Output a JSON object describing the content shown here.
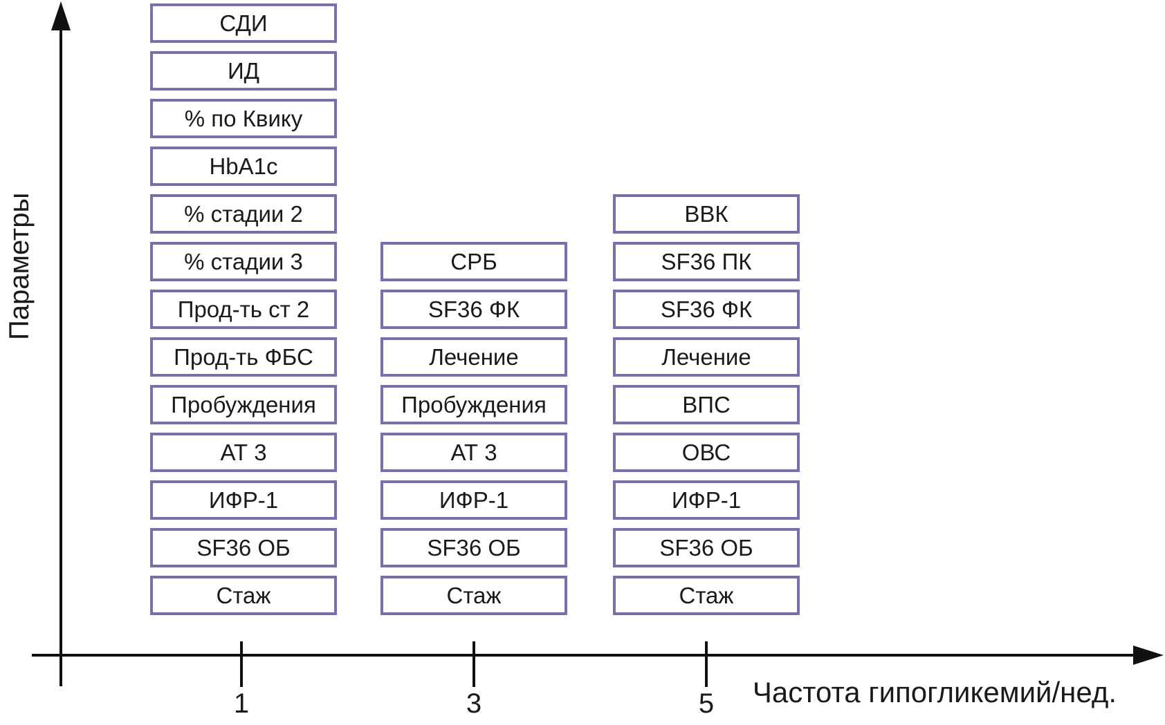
{
  "colors": {
    "box_border": "#7671ae",
    "axis": "#111111",
    "text": "#1a1a1a",
    "background": "#ffffff"
  },
  "chart_data": {
    "type": "table",
    "title": "",
    "xlabel": "Частота гипогликемий/нед.",
    "ylabel": "Параметры",
    "x_ticks": [
      "1",
      "3",
      "5"
    ],
    "legend": "none",
    "grid": false,
    "description": "Stacks of labelled parameter boxes positioned over x-axis values 1, 3 and 5 (frequency of hypoglycemia per week)",
    "columns": [
      {
        "x": "1",
        "parameters_top_to_bottom": [
          "СДИ",
          "ИД",
          "% по Квику",
          "HbA1c",
          "% стадии 2",
          "% стадии 3",
          "Прод-ть ст 2",
          "Прод-ть ФБС",
          "Пробуждения",
          "АТ 3",
          "ИФР-1",
          "SF36 ОБ",
          "Стаж"
        ]
      },
      {
        "x": "3",
        "parameters_top_to_bottom": [
          "СРБ",
          "SF36 ФК",
          "Лечение",
          "Пробуждения",
          "АТ 3",
          "ИФР-1",
          "SF36 ОБ",
          "Стаж"
        ]
      },
      {
        "x": "5",
        "parameters_top_to_bottom": [
          "ВВК",
          "SF36 ПК",
          "SF36 ФК",
          "Лечение",
          "ВПС",
          "ОВС",
          "ИФР-1",
          "SF36 ОБ",
          "Стаж"
        ]
      }
    ]
  }
}
